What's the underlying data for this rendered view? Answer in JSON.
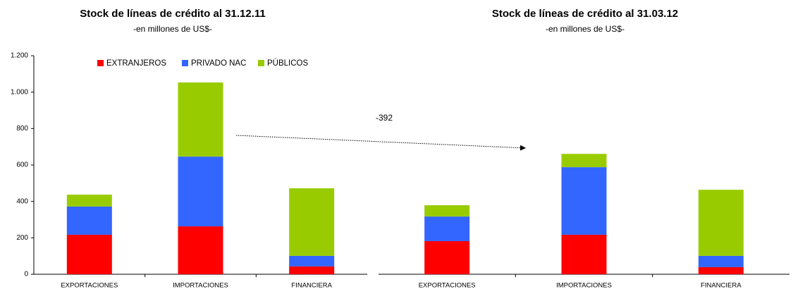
{
  "chart_data": [
    {
      "type": "stacked_bar",
      "title": "Stock de líneas de crédito al 31.12.11",
      "subtitle": "-en millones de US$-",
      "categories": [
        "EXPORTACIONES",
        "IMPORTACIONES",
        "FINANCIERA"
      ],
      "series": [
        {
          "name": "EXTRANJEROS",
          "color": "#ff0000",
          "values": [
            217,
            263,
            43
          ]
        },
        {
          "name": "PRIVADO NAC",
          "color": "#3366ff",
          "values": [
            155,
            383,
            58
          ]
        },
        {
          "name": "PÚBLICOS",
          "color": "#99cc00",
          "values": [
            65,
            407,
            371
          ]
        }
      ],
      "ylim": [
        0,
        1200
      ],
      "yticks": [
        0,
        200,
        400,
        600,
        800,
        {
          "value": 1000,
          "label": "1.000"
        },
        {
          "value": 1200,
          "label": "1.200"
        }
      ],
      "grid": false,
      "legend": "top",
      "y_axis": true
    },
    {
      "type": "stacked_bar",
      "title": "Stock de líneas de crédito al 31.03.12",
      "subtitle": "-en millones de US$-",
      "categories": [
        "EXPORTACIONES",
        "IMPORTACIONES",
        "FINANCIERA"
      ],
      "series": [
        {
          "name": "EXTRANJEROS",
          "color": "#ff0000",
          "values": [
            182,
            217,
            39
          ]
        },
        {
          "name": "PRIVADO NAC",
          "color": "#3366ff",
          "values": [
            135,
            371,
            62
          ]
        },
        {
          "name": "PÚBLICOS",
          "color": "#99cc00",
          "values": [
            62,
            73,
            363
          ]
        }
      ],
      "ylim": [
        0,
        1200
      ],
      "grid": false,
      "legend": false,
      "y_axis": false,
      "annotation": "-392"
    }
  ]
}
